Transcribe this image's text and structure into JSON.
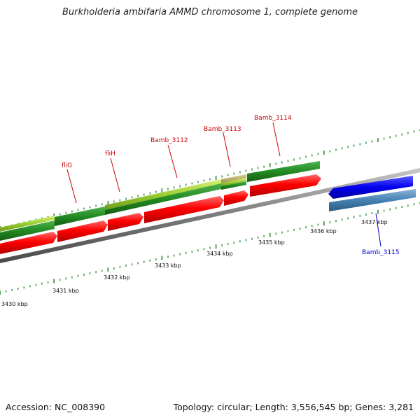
{
  "title": "Burkholderia ambifaria AMMD chromosome 1, complete genome",
  "footer": {
    "accession": "Accession: NC_008390",
    "stats": "Topology: circular; Length: 3,556,545 bp; Genes: 3,281"
  },
  "colors": {
    "background": "#ffffff",
    "backbone": "#8a8a8a",
    "tick": "#2e8b2e",
    "cds_reverse": "#ff0000",
    "gene_dark_green": "#228b22",
    "gene_light_green": "#9acd32",
    "gene_blue": "#0000ee",
    "gene_steel_blue": "#4682b4",
    "label_red": "#cc0000",
    "label_blue": "#0000cc",
    "tick_label": "#111111"
  },
  "ticks": [
    {
      "label": "3430 kbp"
    },
    {
      "label": "3431 kbp"
    },
    {
      "label": "3432 kbp"
    },
    {
      "label": "3433 kbp"
    },
    {
      "label": "3434 kbp"
    },
    {
      "label": "3435 kbp"
    },
    {
      "label": "3436 kbp"
    },
    {
      "label": "3437 kbp"
    }
  ],
  "gene_labels": [
    {
      "name": "fliG",
      "color": "label_red"
    },
    {
      "name": "fliH",
      "color": "label_red"
    },
    {
      "name": "Bamb_3112",
      "color": "label_red"
    },
    {
      "name": "Bamb_3113",
      "color": "label_red"
    },
    {
      "name": "Bamb_3114",
      "color": "label_red"
    },
    {
      "name": "Bamb_3115",
      "color": "label_blue"
    }
  ]
}
